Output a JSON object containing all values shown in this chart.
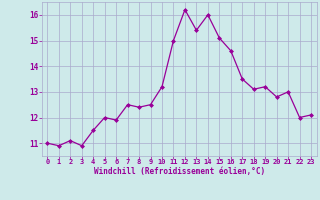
{
  "x": [
    0,
    1,
    2,
    3,
    4,
    5,
    6,
    7,
    8,
    9,
    10,
    11,
    12,
    13,
    14,
    15,
    16,
    17,
    18,
    19,
    20,
    21,
    22,
    23
  ],
  "y": [
    11.0,
    10.9,
    11.1,
    10.9,
    11.5,
    12.0,
    11.9,
    12.5,
    12.4,
    12.5,
    13.2,
    15.0,
    16.2,
    15.4,
    16.0,
    15.1,
    14.6,
    13.5,
    13.1,
    13.2,
    12.8,
    13.0,
    12.0,
    12.1
  ],
  "line_color": "#990099",
  "marker": "D",
  "marker_size": 2,
  "bg_color": "#ceeaea",
  "grid_color": "#aaaacc",
  "xlabel": "Windchill (Refroidissement éolien,°C)",
  "xlabel_color": "#990099",
  "tick_color": "#990099",
  "ylim": [
    10.5,
    16.5
  ],
  "xlim": [
    -0.5,
    23.5
  ],
  "yticks": [
    11,
    12,
    13,
    14,
    15,
    16
  ],
  "xticks": [
    0,
    1,
    2,
    3,
    4,
    5,
    6,
    7,
    8,
    9,
    10,
    11,
    12,
    13,
    14,
    15,
    16,
    17,
    18,
    19,
    20,
    21,
    22,
    23
  ]
}
